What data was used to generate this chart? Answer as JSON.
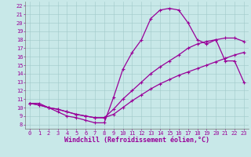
{
  "xlabel": "Windchill (Refroidissement éolien,°C)",
  "bg_color": "#c8e8e8",
  "line_color": "#990099",
  "grid_color": "#a0c8c8",
  "xlim": [
    -0.5,
    23.5
  ],
  "ylim": [
    7.5,
    22.5
  ],
  "xticks": [
    0,
    1,
    2,
    3,
    4,
    5,
    6,
    7,
    8,
    9,
    10,
    11,
    12,
    13,
    14,
    15,
    16,
    17,
    18,
    19,
    20,
    21,
    22,
    23
  ],
  "yticks": [
    8,
    9,
    10,
    11,
    12,
    13,
    14,
    15,
    16,
    17,
    18,
    19,
    20,
    21,
    22
  ],
  "line1_x": [
    0,
    1,
    2,
    3,
    4,
    5,
    6,
    7,
    8,
    9,
    10,
    11,
    12,
    13,
    14,
    15,
    16,
    17,
    18,
    19,
    20,
    21,
    22,
    23
  ],
  "line1_y": [
    10.5,
    10.5,
    10.0,
    9.5,
    9.0,
    8.8,
    8.5,
    8.2,
    8.2,
    11.2,
    14.5,
    16.5,
    18.0,
    20.5,
    21.5,
    21.7,
    21.5,
    20.0,
    18.0,
    17.5,
    18.0,
    15.5,
    15.5,
    13.0
  ],
  "line2_x": [
    0,
    1,
    2,
    3,
    4,
    5,
    6,
    7,
    8,
    9,
    10,
    11,
    12,
    13,
    14,
    15,
    16,
    17,
    18,
    19,
    20,
    21,
    22,
    23
  ],
  "line2_y": [
    10.5,
    10.3,
    10.0,
    9.8,
    9.5,
    9.2,
    9.0,
    8.8,
    8.8,
    9.8,
    11.0,
    12.0,
    13.0,
    14.0,
    14.8,
    15.5,
    16.2,
    17.0,
    17.5,
    17.8,
    18.0,
    18.2,
    18.2,
    17.8
  ],
  "line3_x": [
    0,
    1,
    2,
    3,
    4,
    5,
    6,
    7,
    8,
    9,
    10,
    11,
    12,
    13,
    14,
    15,
    16,
    17,
    18,
    19,
    20,
    21,
    22,
    23
  ],
  "line3_y": [
    10.5,
    10.3,
    10.0,
    9.8,
    9.5,
    9.2,
    9.0,
    8.8,
    8.8,
    9.2,
    10.0,
    10.8,
    11.5,
    12.2,
    12.8,
    13.3,
    13.8,
    14.2,
    14.6,
    15.0,
    15.4,
    15.8,
    16.2,
    16.5
  ],
  "marker": "+",
  "markersize": 3,
  "markeredgewidth": 0.8,
  "linewidth": 0.9,
  "tick_fontsize": 5,
  "xlabel_fontsize": 6
}
